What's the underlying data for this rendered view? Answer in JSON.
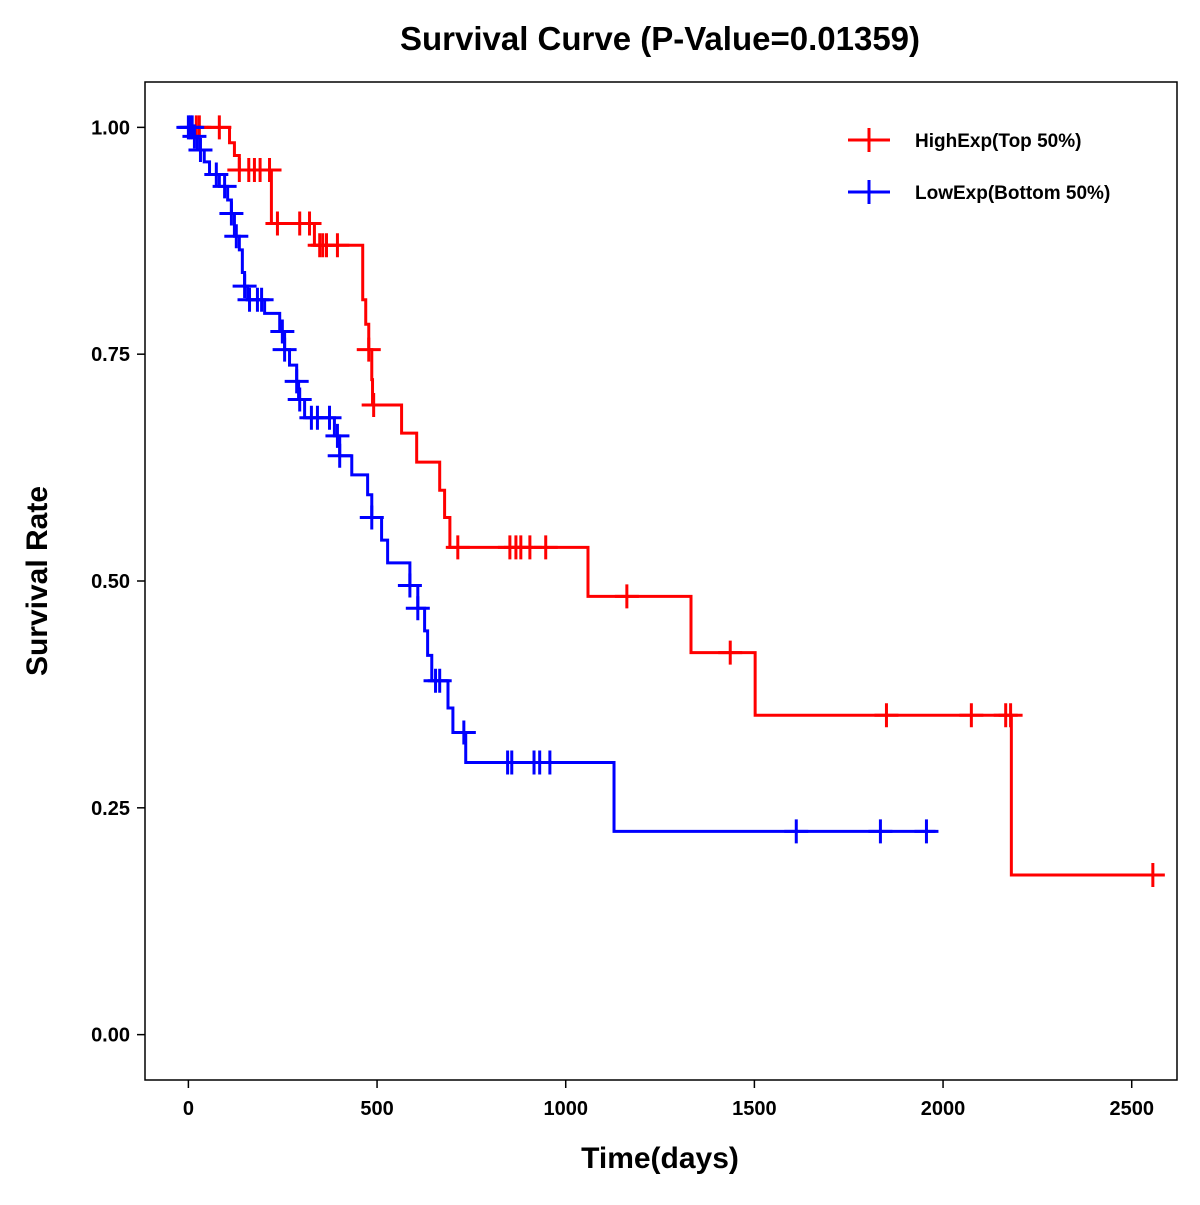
{
  "chart_data": {
    "type": "line",
    "subtype": "kaplan-meier step",
    "title": "Survival Curve (P-Value=0.01359)",
    "xlabel": "Time(days)",
    "ylabel": "Survival Rate",
    "xlim": [
      -115,
      2620
    ],
    "ylim": [
      -0.05,
      1.05
    ],
    "xticks": [
      0,
      500,
      1000,
      1500,
      2000,
      2500
    ],
    "xtick_labels": [
      "0",
      "500",
      "1000",
      "1500",
      "2000",
      "2500"
    ],
    "yticks": [
      0,
      0.25,
      0.5,
      0.75,
      1.0
    ],
    "ytick_labels": [
      "0.00",
      "0.25",
      "0.50",
      "0.75",
      "1.00"
    ],
    "grid": false,
    "legend_position": "top-right",
    "series": [
      {
        "name": "HighExp(Top 50%)",
        "color": "#FF0000",
        "end_time": 2564,
        "steps": [
          [
            0,
            1.0
          ],
          [
            109,
            0.983
          ],
          [
            122,
            0.969
          ],
          [
            135,
            0.953
          ],
          [
            220,
            0.894
          ],
          [
            334,
            0.87
          ],
          [
            462,
            0.81
          ],
          [
            470,
            0.783
          ],
          [
            478,
            0.755
          ],
          [
            486,
            0.722
          ],
          [
            488,
            0.694
          ],
          [
            565,
            0.663
          ],
          [
            605,
            0.631
          ],
          [
            666,
            0.6
          ],
          [
            679,
            0.57
          ],
          [
            693,
            0.537
          ],
          [
            1059,
            0.483
          ],
          [
            1332,
            0.421
          ],
          [
            1502,
            0.352
          ],
          [
            2181,
            0.176
          ]
        ],
        "censored": [
          21,
          29,
          82,
          135,
          160,
          175,
          190,
          215,
          236,
          295,
          321,
          348,
          356,
          366,
          395,
          478,
          491,
          714,
          852,
          868,
          881,
          905,
          947,
          1162,
          1436,
          1850,
          2075,
          2166,
          2179,
          2556
        ]
      },
      {
        "name": "LowExp(Bottom 50%)",
        "color": "#0000FF",
        "end_time": 1980,
        "steps": [
          [
            0,
            1.0
          ],
          [
            11,
            0.99
          ],
          [
            24,
            0.975
          ],
          [
            42,
            0.962
          ],
          [
            56,
            0.948
          ],
          [
            82,
            0.935
          ],
          [
            104,
            0.92
          ],
          [
            114,
            0.905
          ],
          [
            122,
            0.88
          ],
          [
            135,
            0.865
          ],
          [
            143,
            0.84
          ],
          [
            149,
            0.825
          ],
          [
            157,
            0.81
          ],
          [
            202,
            0.795
          ],
          [
            242,
            0.775
          ],
          [
            255,
            0.755
          ],
          [
            268,
            0.738
          ],
          [
            287,
            0.72
          ],
          [
            292,
            0.7
          ],
          [
            308,
            0.68
          ],
          [
            387,
            0.66
          ],
          [
            401,
            0.638
          ],
          [
            433,
            0.617
          ],
          [
            475,
            0.595
          ],
          [
            486,
            0.57
          ],
          [
            512,
            0.545
          ],
          [
            528,
            0.52
          ],
          [
            587,
            0.495
          ],
          [
            608,
            0.47
          ],
          [
            626,
            0.445
          ],
          [
            634,
            0.418
          ],
          [
            645,
            0.39
          ],
          [
            688,
            0.36
          ],
          [
            701,
            0.333
          ],
          [
            735,
            0.3
          ],
          [
            1128,
            0.224
          ]
        ],
        "censored": [
          0,
          5,
          10,
          16,
          32,
          74,
          96,
          114,
          127,
          149,
          162,
          183,
          194,
          249,
          255,
          287,
          295,
          326,
          342,
          374,
          395,
          401,
          486,
          587,
          608,
          655,
          666,
          730,
          846,
          857,
          916,
          931,
          958,
          1611,
          1834,
          1956
        ]
      }
    ]
  }
}
